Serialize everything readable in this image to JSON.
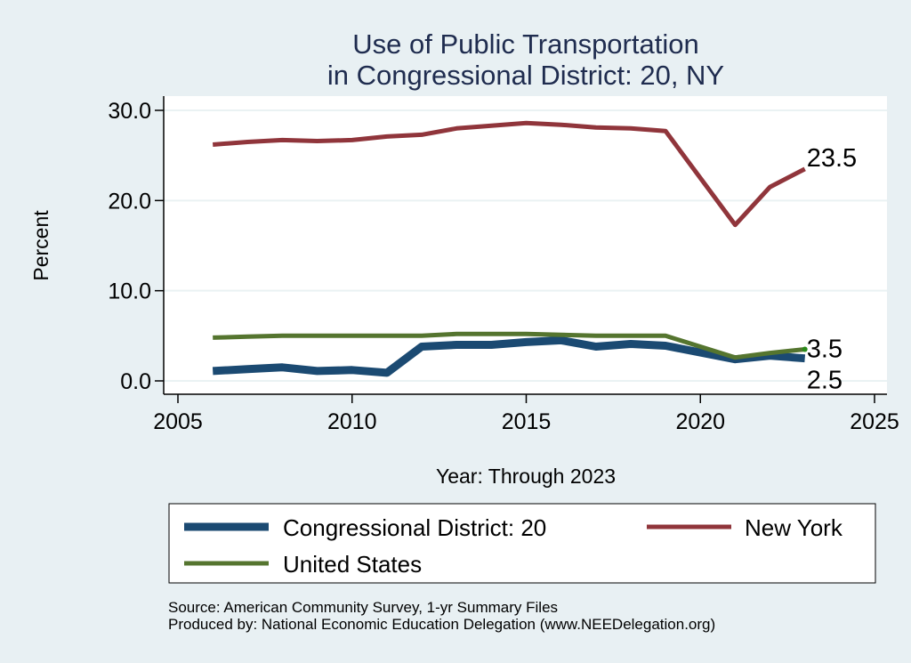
{
  "chart_data": {
    "type": "line",
    "title": [
      "Use of Public Transportation",
      "in Congressional District: 20, NY"
    ],
    "xlabel": "Year: Through 2023",
    "ylabel": "Percent",
    "xlim": [
      2005,
      2025
    ],
    "ylim": [
      0,
      30
    ],
    "xticks": [
      2005,
      2010,
      2015,
      2020,
      2025
    ],
    "xtick_labels": [
      "2005",
      "2010",
      "2015",
      "2020",
      "2025"
    ],
    "yticks": [
      0,
      10,
      20,
      30
    ],
    "ytick_labels": [
      "0.0",
      "10.0",
      "20.0",
      "30.0"
    ],
    "grid": true,
    "legend_position": "bottom",
    "x": [
      2006,
      2007,
      2008,
      2009,
      2010,
      2011,
      2012,
      2013,
      2014,
      2015,
      2016,
      2017,
      2018,
      2019,
      2021,
      2022,
      2023
    ],
    "series": [
      {
        "name": "Congressional District: 20",
        "color": "#1b4a72",
        "values": [
          1.1,
          1.3,
          1.5,
          1.1,
          1.2,
          0.9,
          3.8,
          4.0,
          4.0,
          4.3,
          4.5,
          3.8,
          4.1,
          3.9,
          2.4,
          2.8,
          2.5
        ],
        "end_label": "2.5"
      },
      {
        "name": "New York",
        "color": "#90353b",
        "values": [
          26.2,
          26.5,
          26.7,
          26.6,
          26.7,
          27.1,
          27.3,
          28.0,
          28.3,
          28.6,
          28.4,
          28.1,
          28.0,
          27.7,
          17.3,
          21.5,
          23.5
        ],
        "end_label": "23.5"
      },
      {
        "name": "United States",
        "color": "#55752f",
        "values": [
          4.8,
          4.9,
          5.0,
          5.0,
          5.0,
          5.0,
          5.0,
          5.2,
          5.2,
          5.2,
          5.1,
          5.0,
          5.0,
          5.0,
          2.6,
          3.1,
          3.5
        ],
        "end_label": "3.5"
      }
    ],
    "notes": [
      "Source: American Community Survey, 1-yr Summary Files",
      "Produced by: National Economic Education Delegation (www.NEEDelegation.org)"
    ]
  },
  "colors": {
    "background": "#e8f0f3",
    "plot_background": "#ffffff",
    "gridline": "#eaf2f3",
    "title": "#1f2c4f"
  }
}
